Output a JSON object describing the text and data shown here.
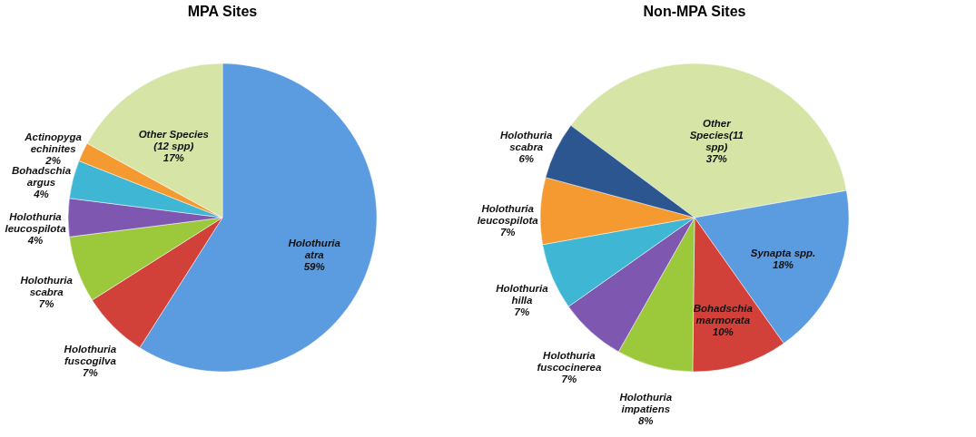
{
  "chart_data": [
    {
      "type": "pie",
      "title": "MPA Sites",
      "categories": [
        "Holothuria atra",
        "Holothuria fuscogilva",
        "Holothuria scabra",
        "Holothuria leucospilota",
        "Bohadschia argus",
        "Actinopyga echinites",
        "Other Species (12 spp)"
      ],
      "values": [
        59,
        7,
        7,
        4,
        4,
        2,
        17
      ],
      "value_labels": [
        "59%",
        "7%",
        "7%",
        "4%",
        "4%",
        "2%",
        "17%"
      ],
      "colors": [
        "#5b9be0",
        "#d2403a",
        "#9cc83c",
        "#7e58b0",
        "#3fb6d4",
        "#f59a30",
        "#d6e4a6"
      ],
      "legend": false
    },
    {
      "type": "pie",
      "title": "Non-MPA Sites",
      "categories": [
        "Other Species(11 spp)",
        "Synapta spp.",
        "Bohadschia marmorata",
        "Holothuria impatiens",
        "Holothuria fuscocinerea",
        "Holothuria  hilla",
        "Holothuria leucospilota",
        "Holothuria scabra"
      ],
      "values": [
        37,
        18,
        10,
        8,
        7,
        7,
        7,
        6
      ],
      "value_labels": [
        "37%",
        "18%",
        "10%",
        "8%",
        "7%",
        "7%",
        "7%",
        "6%"
      ],
      "colors": [
        "#d6e4a6",
        "#5b9be0",
        "#d2403a",
        "#9cc83c",
        "#7e58b0",
        "#3fb6d4",
        "#f59a30",
        "#2b5690"
      ],
      "legend": false
    }
  ]
}
